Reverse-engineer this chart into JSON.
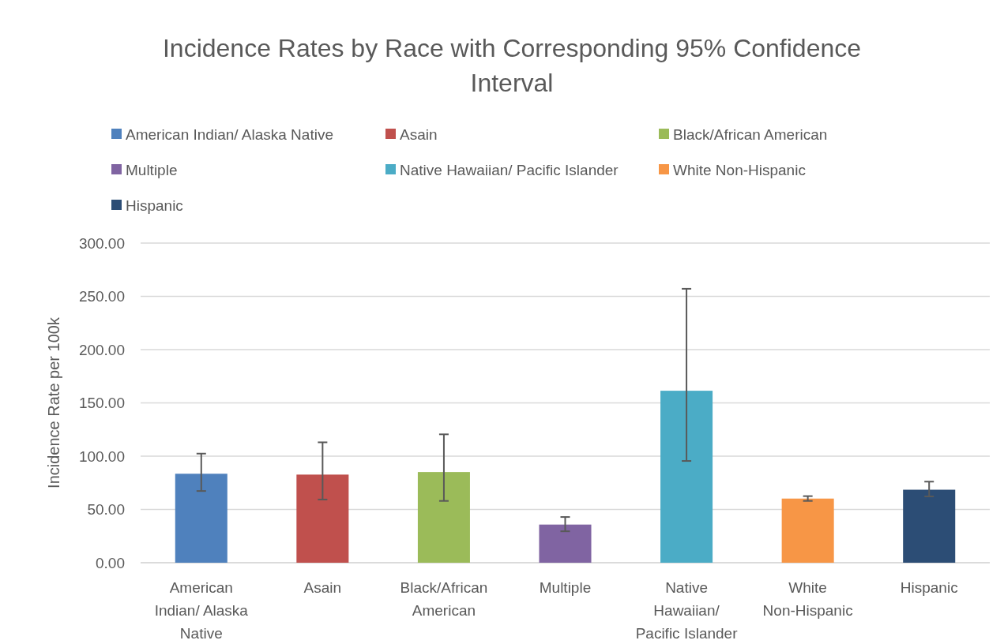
{
  "chart_data": {
    "type": "bar",
    "title": "Incidence Rates by Race with Corresponding 95% Confidence Interval",
    "ylabel": "Incidence Rate per 100k",
    "categories": [
      "American Indian/ Alaska Native",
      "Asain",
      "Black/African American",
      "Multiple",
      "Native Hawaiian/ Pacific Islander",
      "White Non-Hispanic",
      "Hispanic"
    ],
    "series": [
      {
        "name": "American Indian/ Alaska Native",
        "color": "#4f81bd",
        "values": [
          83.5,
          null,
          null,
          null,
          null,
          null,
          null
        ],
        "errors": [
          [
            67.3,
            102.4
          ],
          null,
          null,
          null,
          null,
          null,
          null
        ]
      },
      {
        "name": "Asain",
        "color": "#c0504d",
        "values": [
          null,
          82.7,
          null,
          null,
          null,
          null,
          null
        ],
        "errors": [
          null,
          [
            59.3,
            113
          ],
          null,
          null,
          null,
          null,
          null
        ]
      },
      {
        "name": "Black/African American",
        "color": "#9bbb59",
        "values": [
          null,
          null,
          85.1,
          null,
          null,
          null,
          null
        ],
        "errors": [
          null,
          null,
          [
            58,
            120.5
          ],
          null,
          null,
          null,
          null
        ]
      },
      {
        "name": "Multiple",
        "color": "#8064a2",
        "values": [
          null,
          null,
          null,
          35.8,
          null,
          null,
          null
        ],
        "errors": [
          null,
          null,
          null,
          [
            29.5,
            42.9
          ],
          null,
          null,
          null
        ]
      },
      {
        "name": "Native Hawaiian/ Pacific Islander",
        "color": "#4bacc6",
        "values": [
          null,
          null,
          null,
          null,
          161.4,
          null,
          null
        ],
        "errors": [
          null,
          null,
          null,
          null,
          [
            95.5,
            257.1
          ],
          null,
          null
        ]
      },
      {
        "name": "White Non-Hispanic",
        "color": "#f79646",
        "values": [
          null,
          null,
          null,
          null,
          null,
          60.2,
          null
        ],
        "errors": [
          null,
          null,
          null,
          null,
          null,
          [
            58,
            62.5
          ],
          null
        ]
      },
      {
        "name": "Hispanic",
        "color": "#2c4d75",
        "values": [
          null,
          null,
          null,
          null,
          null,
          null,
          68.5
        ],
        "errors": [
          null,
          null,
          null,
          null,
          null,
          null,
          [
            62.2,
            76.1
          ]
        ]
      }
    ],
    "ylim": [
      0,
      300
    ],
    "yticks": [
      {
        "value": 0,
        "label": "0.00"
      },
      {
        "value": 50,
        "label": "50.00"
      },
      {
        "value": 100,
        "label": "100.00"
      },
      {
        "value": 150,
        "label": "150.00"
      },
      {
        "value": 200,
        "label": "200.00"
      },
      {
        "value": 250,
        "label": "250.00"
      },
      {
        "value": 300,
        "label": "300.00"
      }
    ],
    "grid": "y",
    "legend": "top"
  }
}
